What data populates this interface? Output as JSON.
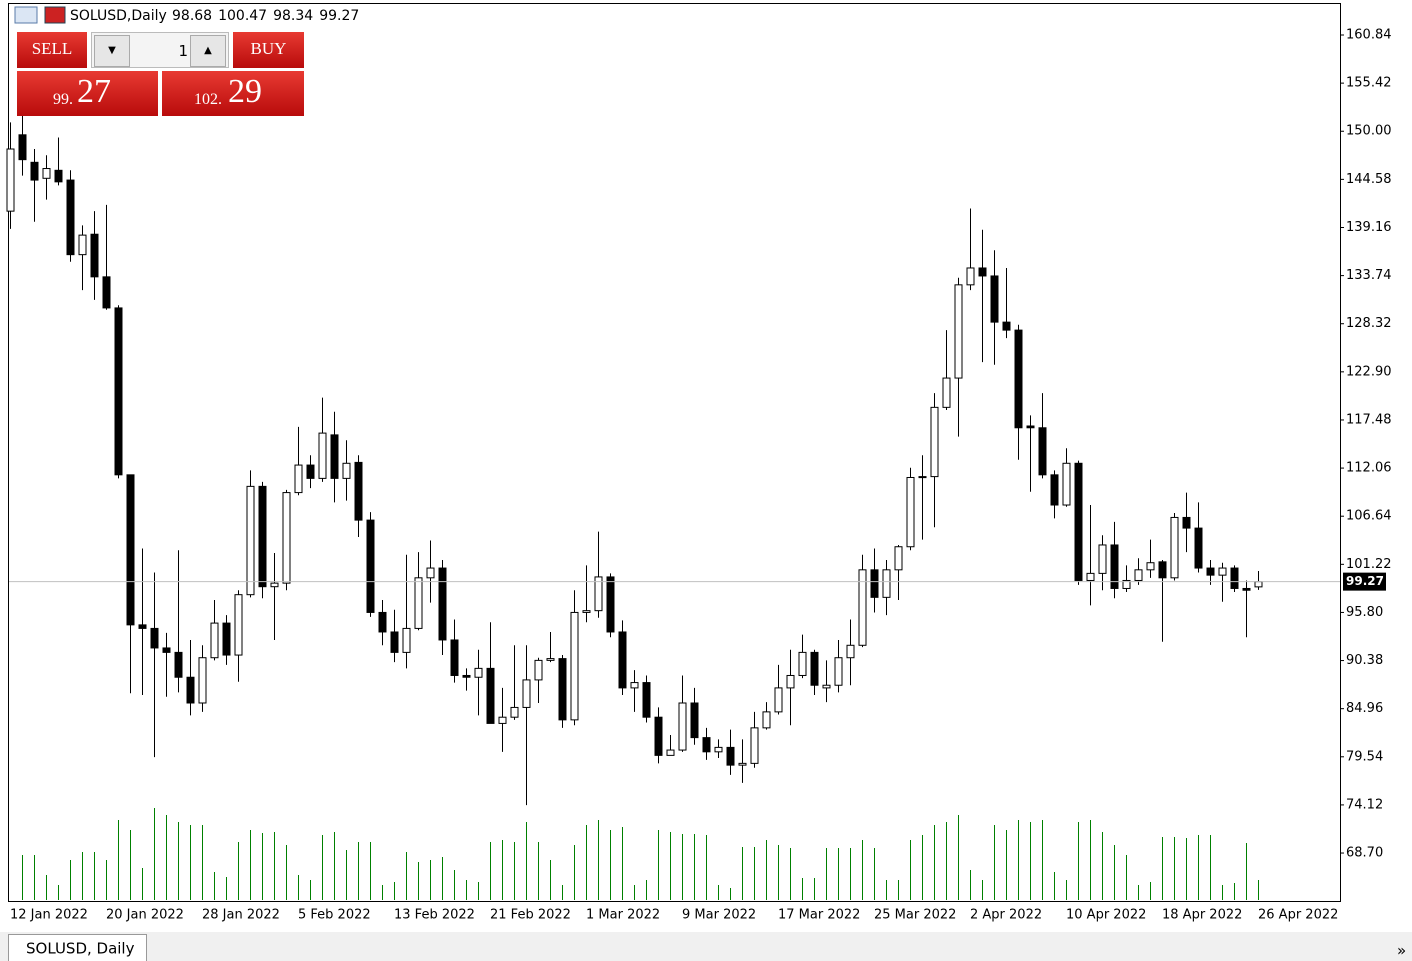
{
  "header": {
    "symbol": "SOLUSD,Daily"
  },
  "trade_panel": {
    "sell": "SELL",
    "buy": "BUY",
    "lot": "1",
    "bid_big": "99.",
    "bid_small": "27",
    "ask_big": "102.",
    "ask_small": "29"
  },
  "tab": {
    "label": "SOLUSD, Daily",
    "scroll": "»"
  },
  "chart_data": {
    "type": "candlestick",
    "categories": [
      "12 Jan 2022",
      null,
      null,
      null,
      null,
      null,
      null,
      null,
      "20 Jan 2022",
      null,
      null,
      null,
      null,
      null,
      null,
      null,
      "28 Jan 2022",
      null,
      null,
      null,
      null,
      null,
      null,
      null,
      "5 Feb 2022",
      null,
      null,
      null,
      null,
      null,
      null,
      null,
      "13 Feb 2022",
      null,
      null,
      null,
      null,
      null,
      null,
      null,
      "21 Feb 2022",
      null,
      null,
      null,
      null,
      null,
      null,
      null,
      "1 Mar 2022",
      null,
      null,
      null,
      null,
      null,
      null,
      null,
      "9 Mar 2022",
      null,
      null,
      null,
      null,
      null,
      null,
      null,
      "17 Mar 2022",
      null,
      null,
      null,
      null,
      null,
      null,
      null,
      "25 Mar 2022",
      null,
      null,
      null,
      null,
      null,
      null,
      null,
      "2 Apr 2022",
      null,
      null,
      null,
      null,
      null,
      null,
      null,
      "10 Apr 2022",
      null,
      null,
      null,
      null,
      null,
      null,
      null,
      "18 Apr 2022",
      null,
      null,
      null,
      null,
      null,
      null,
      null,
      "26 Apr 2022"
    ],
    "open": [
      141,
      149.6,
      146.5,
      144.7,
      145.6,
      144.5,
      136.1,
      138.4,
      133.6,
      130.1,
      111.3,
      94.4,
      94.0,
      91.8,
      91.3,
      88.5,
      85.6,
      90.7,
      94.6,
      91.0,
      97.8,
      110.0,
      98.7,
      99.1,
      109.3,
      112.4,
      110.9,
      115.8,
      110.9,
      112.7,
      106.2,
      95.8,
      93.6,
      91.3,
      94.0,
      99.7,
      100.8,
      92.7,
      88.7,
      88.5,
      89.5,
      83.3,
      84.0,
      85.1,
      88.2,
      90.4,
      90.6,
      83.7,
      95.8,
      96.0,
      99.8,
      93.6,
      87.3,
      87.9,
      84.0,
      79.7,
      80.3,
      85.6,
      81.7,
      80.1,
      80.6,
      78.6,
      78.8,
      82.8,
      84.6,
      87.3,
      88.7,
      91.3,
      87.3,
      87.6,
      90.7,
      92.1,
      100.6,
      97.5,
      100.6,
      103.2,
      111.0,
      111.1,
      118.9,
      122.2,
      132.7,
      134.6,
      133.7,
      128.5,
      127.6,
      116.8,
      116.6,
      111.3,
      107.9,
      112.6,
      99.4,
      100.2,
      103.4,
      98.5,
      99.4,
      100.6,
      101.5,
      99.7,
      106.5,
      105.3,
      100.8,
      100.0,
      100.8,
      98.5,
      98.68
    ],
    "high": [
      151,
      151.8,
      148.0,
      147.3,
      149.3,
      145.6,
      139.4,
      141.0,
      141.7,
      130.4,
      111.3,
      103.0,
      100.3,
      93.5,
      102.8,
      92.7,
      92.1,
      97.2,
      95.5,
      98.3,
      111.8,
      110.5,
      102.5,
      109.6,
      116.7,
      113.5,
      120.0,
      118.4,
      115.2,
      113.5,
      107.1,
      97.2,
      96.1,
      102.3,
      102.6,
      103.9,
      101.7,
      95.0,
      89.5,
      91.6,
      94.7,
      87.3,
      92.1,
      92.1,
      90.7,
      93.6,
      91.0,
      98.3,
      101.1,
      104.9,
      100.2,
      94.9,
      89.3,
      88.7,
      85.1,
      82.0,
      88.7,
      87.3,
      82.8,
      81.5,
      82.6,
      81.5,
      84.6,
      85.7,
      89.9,
      91.6,
      93.3,
      91.6,
      90.4,
      92.7,
      95.0,
      102.3,
      103.0,
      101.7,
      103.4,
      112.1,
      113.5,
      120.5,
      127.6,
      133.5,
      141.3,
      138.9,
      136.6,
      134.6,
      128.2,
      118.0,
      120.5,
      111.8,
      114.3,
      112.9,
      107.9,
      104.5,
      106.0,
      101.1,
      101.9,
      104.0,
      101.7,
      107.0,
      109.3,
      108.2,
      101.7,
      101.4,
      101.1,
      99.4,
      100.47
    ],
    "low": [
      139,
      145.0,
      139.8,
      142.3,
      143.9,
      135.3,
      132.1,
      131.0,
      129.9,
      110.9,
      86.7,
      86.5,
      79.5,
      86.3,
      86.8,
      84.2,
      84.6,
      90.4,
      89.9,
      88.0,
      97.5,
      97.4,
      92.7,
      98.3,
      109.0,
      109.8,
      110.5,
      108.2,
      108.4,
      104.3,
      95.3,
      92.1,
      90.2,
      89.5,
      93.8,
      96.9,
      91.0,
      87.9,
      87.0,
      84.2,
      83.3,
      80.1,
      83.7,
      74.1,
      85.6,
      90.2,
      82.8,
      83.1,
      94.7,
      95.2,
      93.0,
      86.5,
      84.6,
      83.4,
      78.8,
      79.7,
      80.1,
      80.9,
      79.2,
      79.4,
      77.5,
      76.6,
      78.3,
      82.6,
      84.3,
      83.1,
      88.4,
      86.5,
      85.7,
      86.8,
      87.6,
      91.9,
      95.8,
      95.5,
      97.2,
      102.8,
      104.0,
      105.4,
      118.6,
      115.6,
      132.1,
      124.0,
      123.7,
      126.7,
      113.0,
      109.4,
      110.9,
      106.4,
      107.7,
      98.9,
      96.6,
      98.3,
      97.4,
      98.1,
      98.9,
      99.7,
      92.5,
      99.4,
      102.6,
      100.3,
      98.9,
      97.0,
      98.1,
      93.0,
      98.34
    ],
    "close": [
      148,
      146.8,
      144.5,
      145.8,
      144.3,
      136.1,
      138.3,
      133.6,
      130.1,
      111.3,
      94.4,
      94.0,
      91.8,
      91.3,
      88.5,
      85.6,
      90.7,
      94.6,
      91.0,
      97.8,
      110.0,
      98.7,
      99.1,
      109.3,
      112.4,
      110.9,
      116.0,
      110.9,
      112.6,
      106.2,
      95.8,
      93.6,
      91.3,
      94.0,
      99.7,
      100.8,
      92.7,
      88.7,
      88.5,
      89.5,
      83.3,
      84.0,
      85.1,
      88.2,
      90.4,
      90.6,
      83.7,
      95.8,
      96.0,
      99.8,
      93.6,
      87.3,
      87.9,
      84.0,
      79.7,
      80.3,
      85.6,
      81.7,
      80.1,
      80.6,
      78.6,
      78.8,
      82.8,
      84.6,
      87.3,
      88.7,
      91.3,
      87.6,
      87.6,
      90.7,
      92.1,
      100.6,
      97.5,
      100.6,
      103.2,
      111.0,
      111.1,
      118.9,
      122.2,
      132.7,
      134.6,
      133.7,
      128.5,
      127.6,
      116.6,
      116.6,
      111.3,
      107.9,
      112.6,
      99.4,
      100.2,
      103.4,
      98.5,
      99.4,
      100.6,
      101.4,
      99.7,
      106.5,
      105.3,
      100.8,
      100.0,
      100.8,
      98.5,
      98.3,
      99.27
    ],
    "volumes": [
      null,
      45,
      45,
      25,
      15,
      40,
      48,
      48,
      40,
      80,
      70,
      32,
      92,
      85,
      78,
      75,
      75,
      28,
      23,
      58,
      70,
      67,
      68,
      55,
      25,
      20,
      65,
      68,
      50,
      58,
      58,
      15,
      18,
      48,
      38,
      40,
      43,
      30,
      20,
      18,
      58,
      60,
      58,
      78,
      58,
      40,
      15,
      55,
      75,
      80,
      70,
      73,
      15,
      20,
      70,
      68,
      66,
      66,
      65,
      15,
      12,
      53,
      53,
      60,
      55,
      52,
      22,
      22,
      52,
      52,
      52,
      60,
      52,
      20,
      20,
      60,
      65,
      75,
      78,
      85,
      30,
      20,
      75,
      70,
      80,
      78,
      80,
      28,
      20,
      78,
      80,
      68,
      55,
      45,
      15,
      18,
      63,
      63,
      62,
      65,
      65,
      15,
      17,
      57,
      20
    ],
    "volume_color": "#008000",
    "up_color": "#ffffff",
    "down_color": "#000000",
    "ylim": [
      63.41,
      164.22
    ],
    "vlim": [
      0,
      100
    ],
    "yticks": [
      160.84,
      155.42,
      {
        "value": 150,
        "label": "150.00"
      },
      144.58,
      139.16,
      133.74,
      128.32,
      {
        "value": 122.9,
        "label": "122.90"
      },
      117.48,
      112.06,
      106.64,
      101.22,
      {
        "value": 95.8,
        "label": "95.80"
      },
      90.38,
      84.96,
      79.54,
      74.12,
      {
        "value": 68.7,
        "label": "68.70"
      }
    ]
  }
}
